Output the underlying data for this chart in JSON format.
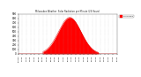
{
  "title": "Milwaukee Weather  Solar Radiation per Minute (24 Hours)",
  "background_color": "#ffffff",
  "fill_color": "#ff0000",
  "line_color": "#dd0000",
  "legend_label": "Solar Rad",
  "legend_color": "#ff0000",
  "xlim": [
    0,
    1440
  ],
  "ylim": [
    0,
    900
  ],
  "yticks": [
    0,
    100,
    200,
    300,
    400,
    500,
    600,
    700,
    800,
    900
  ],
  "grid_color": "#aaaaaa",
  "peak_minute": 750,
  "peak_value": 820,
  "sigma": 165,
  "daylight_start": 360,
  "daylight_end": 1170,
  "x_tick_positions": [
    0,
    60,
    120,
    180,
    240,
    300,
    360,
    420,
    480,
    540,
    600,
    660,
    720,
    780,
    840,
    900,
    960,
    1020,
    1080,
    1140,
    1200,
    1260,
    1320,
    1380,
    1440
  ],
  "x_tick_labels": [
    "12:00a",
    "1:00a",
    "2:00a",
    "3:00a",
    "4:00a",
    "5:00a",
    "6:00a",
    "7:00a",
    "8:00a",
    "9:00a",
    "10:0a",
    "11:0a",
    "12:0p",
    "1:00p",
    "2:00p",
    "3:00p",
    "4:00p",
    "5:00p",
    "6:00p",
    "7:00p",
    "8:00p",
    "9:00p",
    "10:0p",
    "11:0p",
    "12:0a"
  ]
}
